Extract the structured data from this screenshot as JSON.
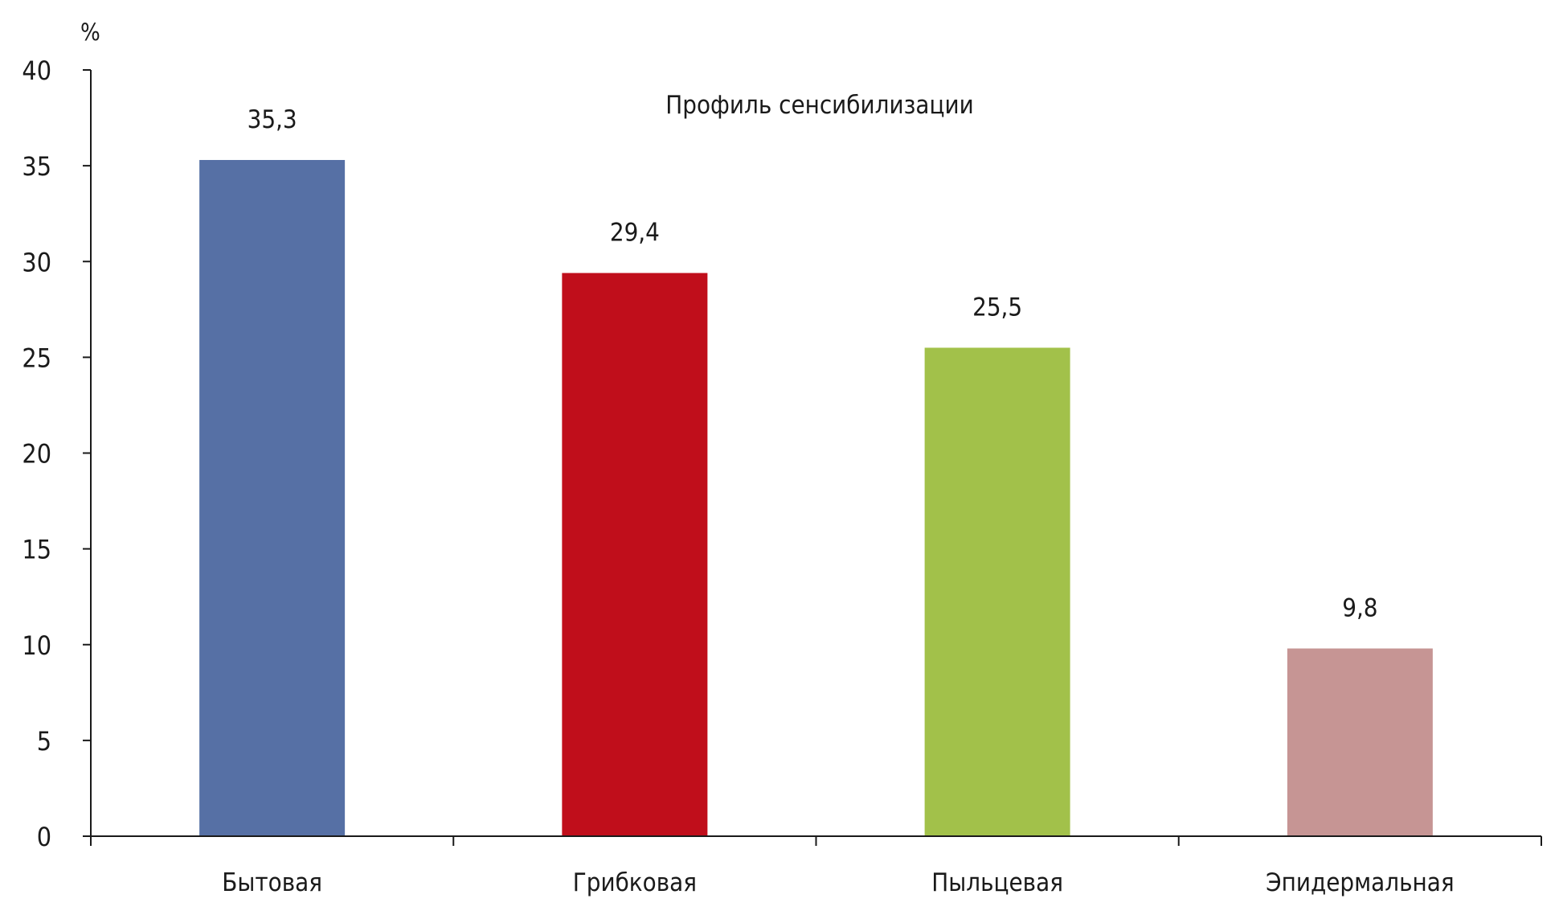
{
  "chart_data": {
    "type": "bar",
    "title": "Профиль сенсибилизации",
    "ylabel": "%",
    "xlabel": "",
    "ylim": [
      0,
      40
    ],
    "yticks": [
      0,
      5,
      10,
      15,
      20,
      25,
      30,
      35,
      40
    ],
    "categories": [
      "Бытовая",
      "Грибковая",
      "Пыльцевая",
      "Эпидермальная"
    ],
    "values": [
      35.3,
      29.4,
      25.5,
      9.8
    ],
    "value_labels": [
      "35,3",
      "29,4",
      "25,5",
      "9,8"
    ],
    "colors": [
      "#5670a5",
      "#c00e1b",
      "#a2c14a",
      "#c69594"
    ],
    "grid": false,
    "legend": "none"
  }
}
